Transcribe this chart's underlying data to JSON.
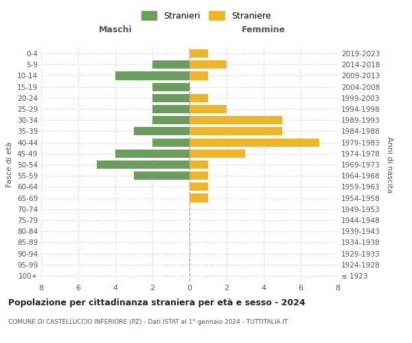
{
  "age_groups": [
    "100+",
    "95-99",
    "90-94",
    "85-89",
    "80-84",
    "75-79",
    "70-74",
    "65-69",
    "60-64",
    "55-59",
    "50-54",
    "45-49",
    "40-44",
    "35-39",
    "30-34",
    "25-29",
    "20-24",
    "15-19",
    "10-14",
    "5-9",
    "0-4"
  ],
  "birth_years": [
    "≤ 1923",
    "1924-1928",
    "1929-1933",
    "1934-1938",
    "1939-1943",
    "1944-1948",
    "1949-1953",
    "1954-1958",
    "1959-1963",
    "1964-1968",
    "1969-1973",
    "1974-1978",
    "1979-1983",
    "1984-1988",
    "1989-1993",
    "1994-1998",
    "1999-2003",
    "2004-2008",
    "2009-2013",
    "2014-2018",
    "2019-2023"
  ],
  "males": [
    0,
    0,
    0,
    0,
    0,
    0,
    0,
    0,
    0,
    3,
    5,
    4,
    2,
    3,
    2,
    2,
    2,
    2,
    4,
    2,
    0
  ],
  "females": [
    0,
    0,
    0,
    0,
    0,
    0,
    0,
    1,
    1,
    1,
    1,
    3,
    7,
    5,
    5,
    2,
    1,
    0,
    1,
    2,
    1
  ],
  "male_color": "#6a9e5e",
  "female_color": "#f0b429",
  "title": "Popolazione per cittadinanza straniera per età e sesso - 2024",
  "subtitle": "COMUNE DI CASTELLUCCIO INFERIORE (PZ) - Dati ISTAT al 1° gennaio 2024 - TUTTITALIA.IT",
  "xlabel_left": "Maschi",
  "xlabel_right": "Femmine",
  "ylabel_left": "Fasce di età",
  "ylabel_right": "Anni di nascita",
  "legend_males": "Stranieri",
  "legend_females": "Straniere",
  "xlim": 8,
  "background_color": "#ffffff",
  "grid_color": "#cccccc"
}
